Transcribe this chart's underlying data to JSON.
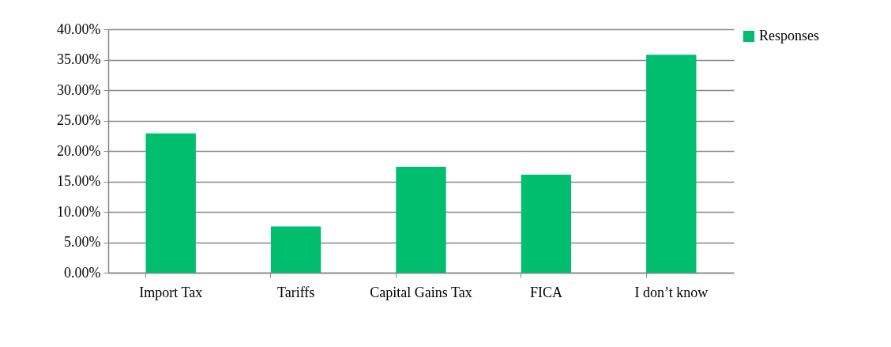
{
  "chart_data": {
    "type": "bar",
    "categories": [
      "Import Tax",
      "Tariffs",
      "Capital Gains Tax",
      "FICA",
      "I don’t know"
    ],
    "series": [
      {
        "name": "Responses",
        "color": "#00be6e",
        "values": [
          22.9,
          7.6,
          17.4,
          16.1,
          35.8
        ]
      }
    ],
    "ylim": [
      0,
      40
    ],
    "yticks": [
      {
        "value": 0,
        "label": "0.00%"
      },
      {
        "value": 5,
        "label": "5.00%"
      },
      {
        "value": 10,
        "label": "10.00%"
      },
      {
        "value": 15,
        "label": "15.00%"
      },
      {
        "value": 20,
        "label": "20.00%"
      },
      {
        "value": 25,
        "label": "25.00%"
      },
      {
        "value": 30,
        "label": "30.00%"
      },
      {
        "value": 35,
        "label": "35.00%"
      },
      {
        "value": 40,
        "label": "40.00%"
      }
    ],
    "grid": "y",
    "legend": "right"
  }
}
